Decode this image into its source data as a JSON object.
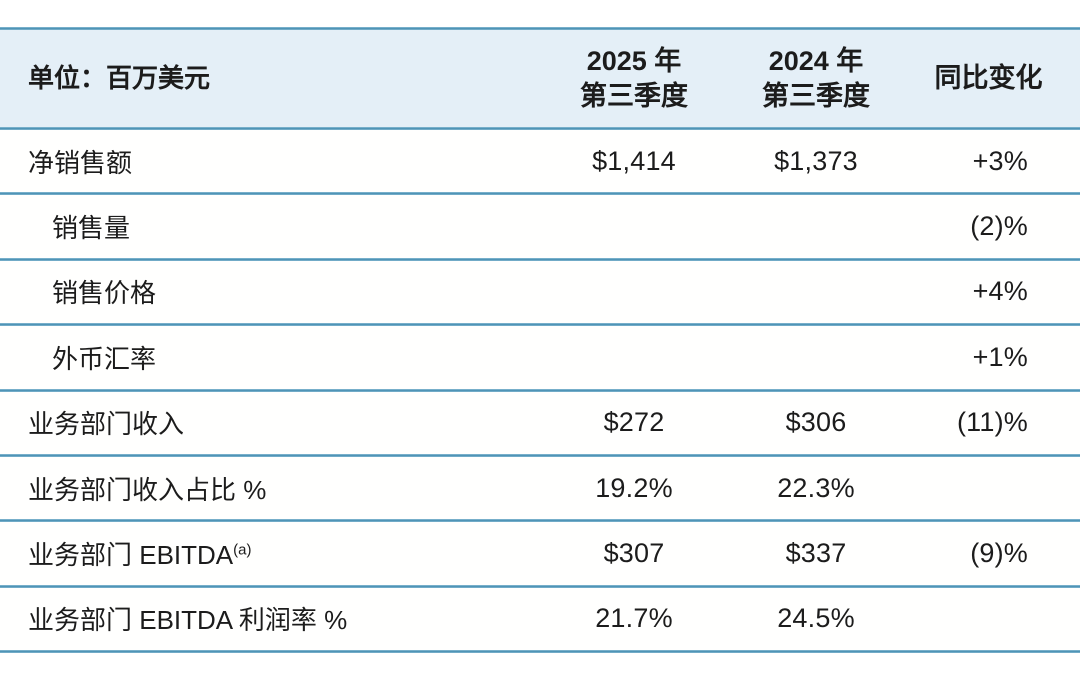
{
  "table": {
    "unit_label": "单位：百万美元",
    "column_headers": {
      "q3_2025_line1": "2025 年",
      "q3_2025_line2": "第三季度",
      "q3_2024_line1": "2024 年",
      "q3_2024_line2": "第三季度",
      "yoy": "同比变化"
    },
    "rows": [
      {
        "label": "净销售额",
        "indent": false,
        "superscript": "",
        "q3_2025": "$1,414",
        "q3_2024": "$1,373",
        "yoy": "+3%"
      },
      {
        "label": "销售量",
        "indent": true,
        "superscript": "",
        "q3_2025": "",
        "q3_2024": "",
        "yoy": "(2)%"
      },
      {
        "label": "销售价格",
        "indent": true,
        "superscript": "",
        "q3_2025": "",
        "q3_2024": "",
        "yoy": "+4%"
      },
      {
        "label": "外币汇率",
        "indent": true,
        "superscript": "",
        "q3_2025": "",
        "q3_2024": "",
        "yoy": "+1%"
      },
      {
        "label": "业务部门收入",
        "indent": false,
        "superscript": "",
        "q3_2025": "$272",
        "q3_2024": "$306",
        "yoy": "(11)%"
      },
      {
        "label": "业务部门收入占比 %",
        "indent": false,
        "superscript": "",
        "q3_2025": "19.2%",
        "q3_2024": "22.3%",
        "yoy": ""
      },
      {
        "label": "业务部门 EBITDA",
        "indent": false,
        "superscript": "(a)",
        "q3_2025": "$307",
        "q3_2024": "$337",
        "yoy": "(9)%"
      },
      {
        "label": "业务部门 EBITDA 利润率 %",
        "indent": false,
        "superscript": "",
        "q3_2025": "21.7%",
        "q3_2024": "24.5%",
        "yoy": ""
      }
    ],
    "colors": {
      "header_background": "#e4eff7",
      "divider_line": "#4f94b6",
      "text": "#1c1c1c"
    }
  }
}
